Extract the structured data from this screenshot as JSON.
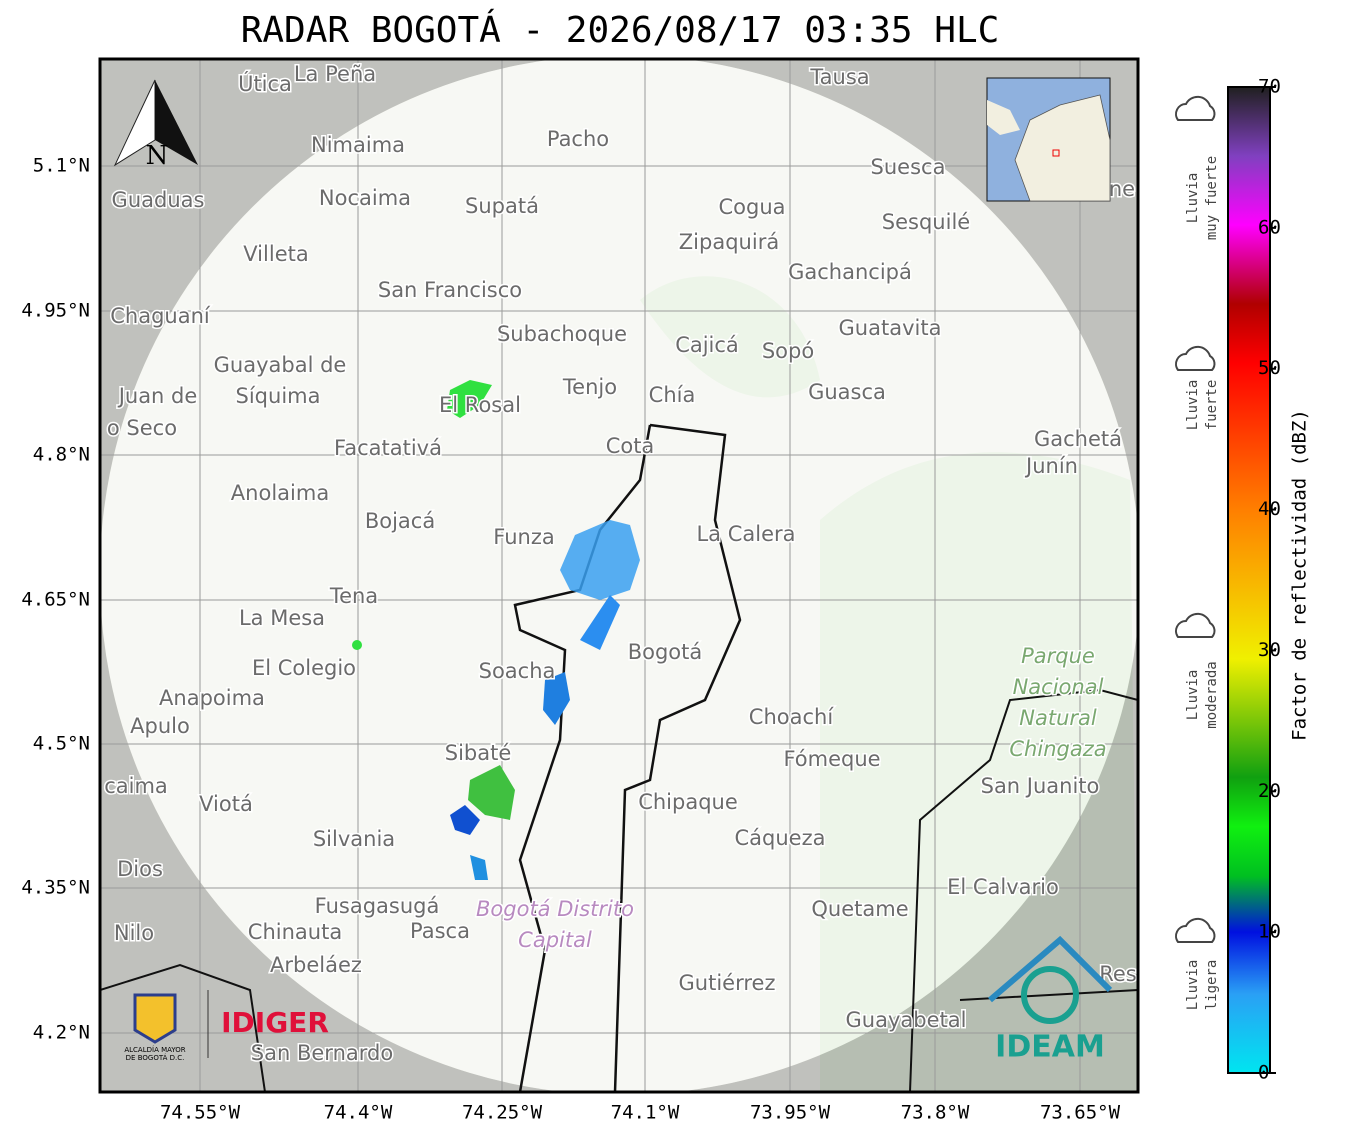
{
  "header": {
    "title": "RADAR BOGOTÁ - 2026/08/17 03:35 HLC"
  },
  "map": {
    "lat_labels": [
      "5.1°N",
      "4.95°N",
      "4.8°N",
      "4.65°N",
      "4.5°N",
      "4.35°N",
      "4.2°N"
    ],
    "lon_labels": [
      "74.55°W",
      "74.4°W",
      "74.25°W",
      "74.1°W",
      "73.95°W",
      "73.8°W",
      "73.65°W"
    ],
    "north": "N",
    "places": [
      "Útica",
      "La Peña",
      "Tausa",
      "Pacho",
      "Nimaima",
      "Guaduas",
      "Nocaima",
      "Supatá",
      "Cogua",
      "Suesca",
      "Sesquilé",
      "Zipaquirá",
      "Villeta",
      "Gachancipá",
      "San Francisco",
      "Chaguaní",
      "Guatavita",
      "Subachoque",
      "Cajicá",
      "Sopó",
      "Guayabal de",
      "Síquima",
      "Juan de",
      "o Seco",
      "Tenjo",
      "Chía",
      "Guasca",
      "El Rosal",
      "Facatativá",
      "Cota",
      "Gachetá",
      "Junín",
      "Anolaima",
      "Bojacá",
      "La Calera",
      "Funza",
      "Tena",
      "La Mesa",
      "El Colegio",
      "Soacha",
      "Bogotá",
      "Anapoima",
      "Apulo",
      "Choachí",
      "Sibaté",
      "Fómeque",
      "San Juanito",
      "caima",
      "Viotá",
      "Chipaque",
      "Silvania",
      "Cáqueza",
      "Dios",
      "El Calvario",
      "Fusagasugá",
      "Quetame",
      "Nilo",
      "Chinauta",
      "Pasca",
      "Arbeláez",
      "Gutiérrez",
      "Guayabetal",
      "San Bernardo",
      "Res",
      "ne"
    ],
    "park": [
      "Parque",
      "Nacional",
      "Natural",
      "Chingaza"
    ],
    "district": [
      "Bogotá Distrito",
      "Capital"
    ]
  },
  "colorbar": {
    "label": "Factor de reflectividad (dBZ)",
    "lim": [
      0,
      70
    ],
    "ticks": [
      0,
      10,
      20,
      30,
      40,
      50,
      60,
      70
    ]
  },
  "legend": [
    {
      "line1": "Lluvia",
      "line2": "muy fuerte"
    },
    {
      "line1": "Lluvia",
      "line2": "fuerte"
    },
    {
      "line1": "Lluvia",
      "line2": "moderada"
    },
    {
      "line1": "Lluvia",
      "line2": "ligera"
    }
  ],
  "logos": {
    "alcaldia": [
      "ALCALDÍA MAYOR",
      "DE BOGOTÁ D.C."
    ],
    "idiger": "IDIGER",
    "ideam": "IDEAM"
  }
}
